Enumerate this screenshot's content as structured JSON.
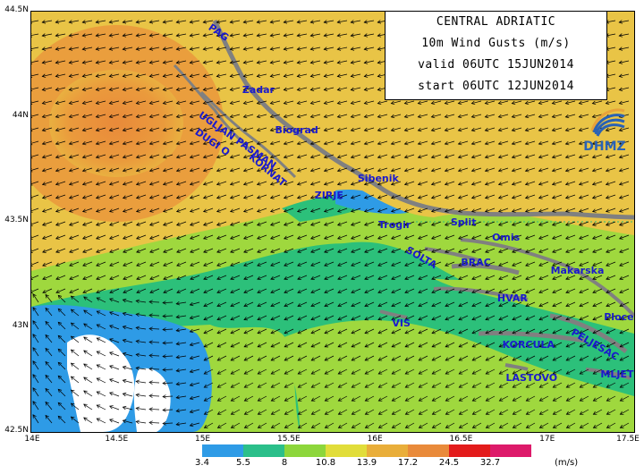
{
  "title": {
    "line1": "CENTRAL ADRIATIC",
    "line2": "10m Wind Gusts (m/s)",
    "line3": "valid 06UTC 15JUN2014",
    "line4": "start 06UTC 12JUN2014"
  },
  "logo": {
    "text": "DHMZ",
    "icon": "dhmz-swirl-logo"
  },
  "axes": {
    "lat_ticks": [
      {
        "value": 44.5,
        "label": "44.5N"
      },
      {
        "value": 44.0,
        "label": "44N"
      },
      {
        "value": 43.5,
        "label": "43.5N"
      },
      {
        "value": 43.0,
        "label": "43N"
      },
      {
        "value": 42.5,
        "label": "42.5N"
      }
    ],
    "lon_ticks": [
      {
        "value": 14.0,
        "label": "14E"
      },
      {
        "value": 14.5,
        "label": "14.5E"
      },
      {
        "value": 15.0,
        "label": "15E"
      },
      {
        "value": 15.5,
        "label": "15.5E"
      },
      {
        "value": 16.0,
        "label": "16E"
      },
      {
        "value": 16.5,
        "label": "16.5E"
      },
      {
        "value": 17.0,
        "label": "17E"
      },
      {
        "value": 17.5,
        "label": "17.5E"
      }
    ],
    "lon_range": [
      14.0,
      17.5
    ],
    "lat_range": [
      42.5,
      44.5
    ]
  },
  "places": [
    {
      "name": "PAG",
      "lon": 15.06,
      "lat": 44.45,
      "rot": 35
    },
    {
      "name": "Zadar",
      "lon": 15.23,
      "lat": 44.15
    },
    {
      "name": "UGLJAN PASMAN",
      "lon": 15.0,
      "lat": 44.03,
      "rot": 35
    },
    {
      "name": "Biograd",
      "lon": 15.42,
      "lat": 43.96
    },
    {
      "name": "DUGI O",
      "lon": 14.98,
      "lat": 43.95,
      "rot": 35
    },
    {
      "name": "KORNAT",
      "lon": 15.3,
      "lat": 43.83,
      "rot": 40
    },
    {
      "name": "Sibenik",
      "lon": 15.9,
      "lat": 43.73
    },
    {
      "name": "ZIRJE",
      "lon": 15.65,
      "lat": 43.65
    },
    {
      "name": "Trogir",
      "lon": 16.02,
      "lat": 43.51
    },
    {
      "name": "Split",
      "lon": 16.44,
      "lat": 43.52
    },
    {
      "name": "Omis",
      "lon": 16.68,
      "lat": 43.45
    },
    {
      "name": "SOLTA",
      "lon": 16.2,
      "lat": 43.39,
      "rot": 30
    },
    {
      "name": "BRAC",
      "lon": 16.5,
      "lat": 43.33
    },
    {
      "name": "Makarska",
      "lon": 17.02,
      "lat": 43.29
    },
    {
      "name": "HVAR",
      "lon": 16.71,
      "lat": 43.16
    },
    {
      "name": "VIS",
      "lon": 16.1,
      "lat": 43.04
    },
    {
      "name": "Ploce",
      "lon": 17.33,
      "lat": 43.07
    },
    {
      "name": "PELJESAC",
      "lon": 17.16,
      "lat": 43.0,
      "rot": 30
    },
    {
      "name": "KORCULA",
      "lon": 16.74,
      "lat": 42.94
    },
    {
      "name": "LASTOVO",
      "lon": 16.76,
      "lat": 42.78
    },
    {
      "name": "MLJET",
      "lon": 17.31,
      "lat": 42.8
    }
  ],
  "legend": {
    "labels": [
      "3.4",
      "5.5",
      "8",
      "10.8",
      "13.9",
      "17.2",
      "24.5",
      "32.7"
    ],
    "colors": [
      "#ffffff",
      "#2e9be6",
      "#2bbf8a",
      "#8dd63b",
      "#e1dd3a",
      "#e9ae3a",
      "#e98a3a",
      "#e31b1b",
      "#dd1a6a"
    ],
    "unit": "(m/s)"
  },
  "colors": {
    "land": "#808080",
    "coast_text": "#1a1acd",
    "field_orange": "#ea9a3c",
    "field_yellow": "#e9c446",
    "field_lightgreen": "#9fd83e",
    "field_green": "#2cc07a",
    "field_blue": "#2e9be6"
  }
}
